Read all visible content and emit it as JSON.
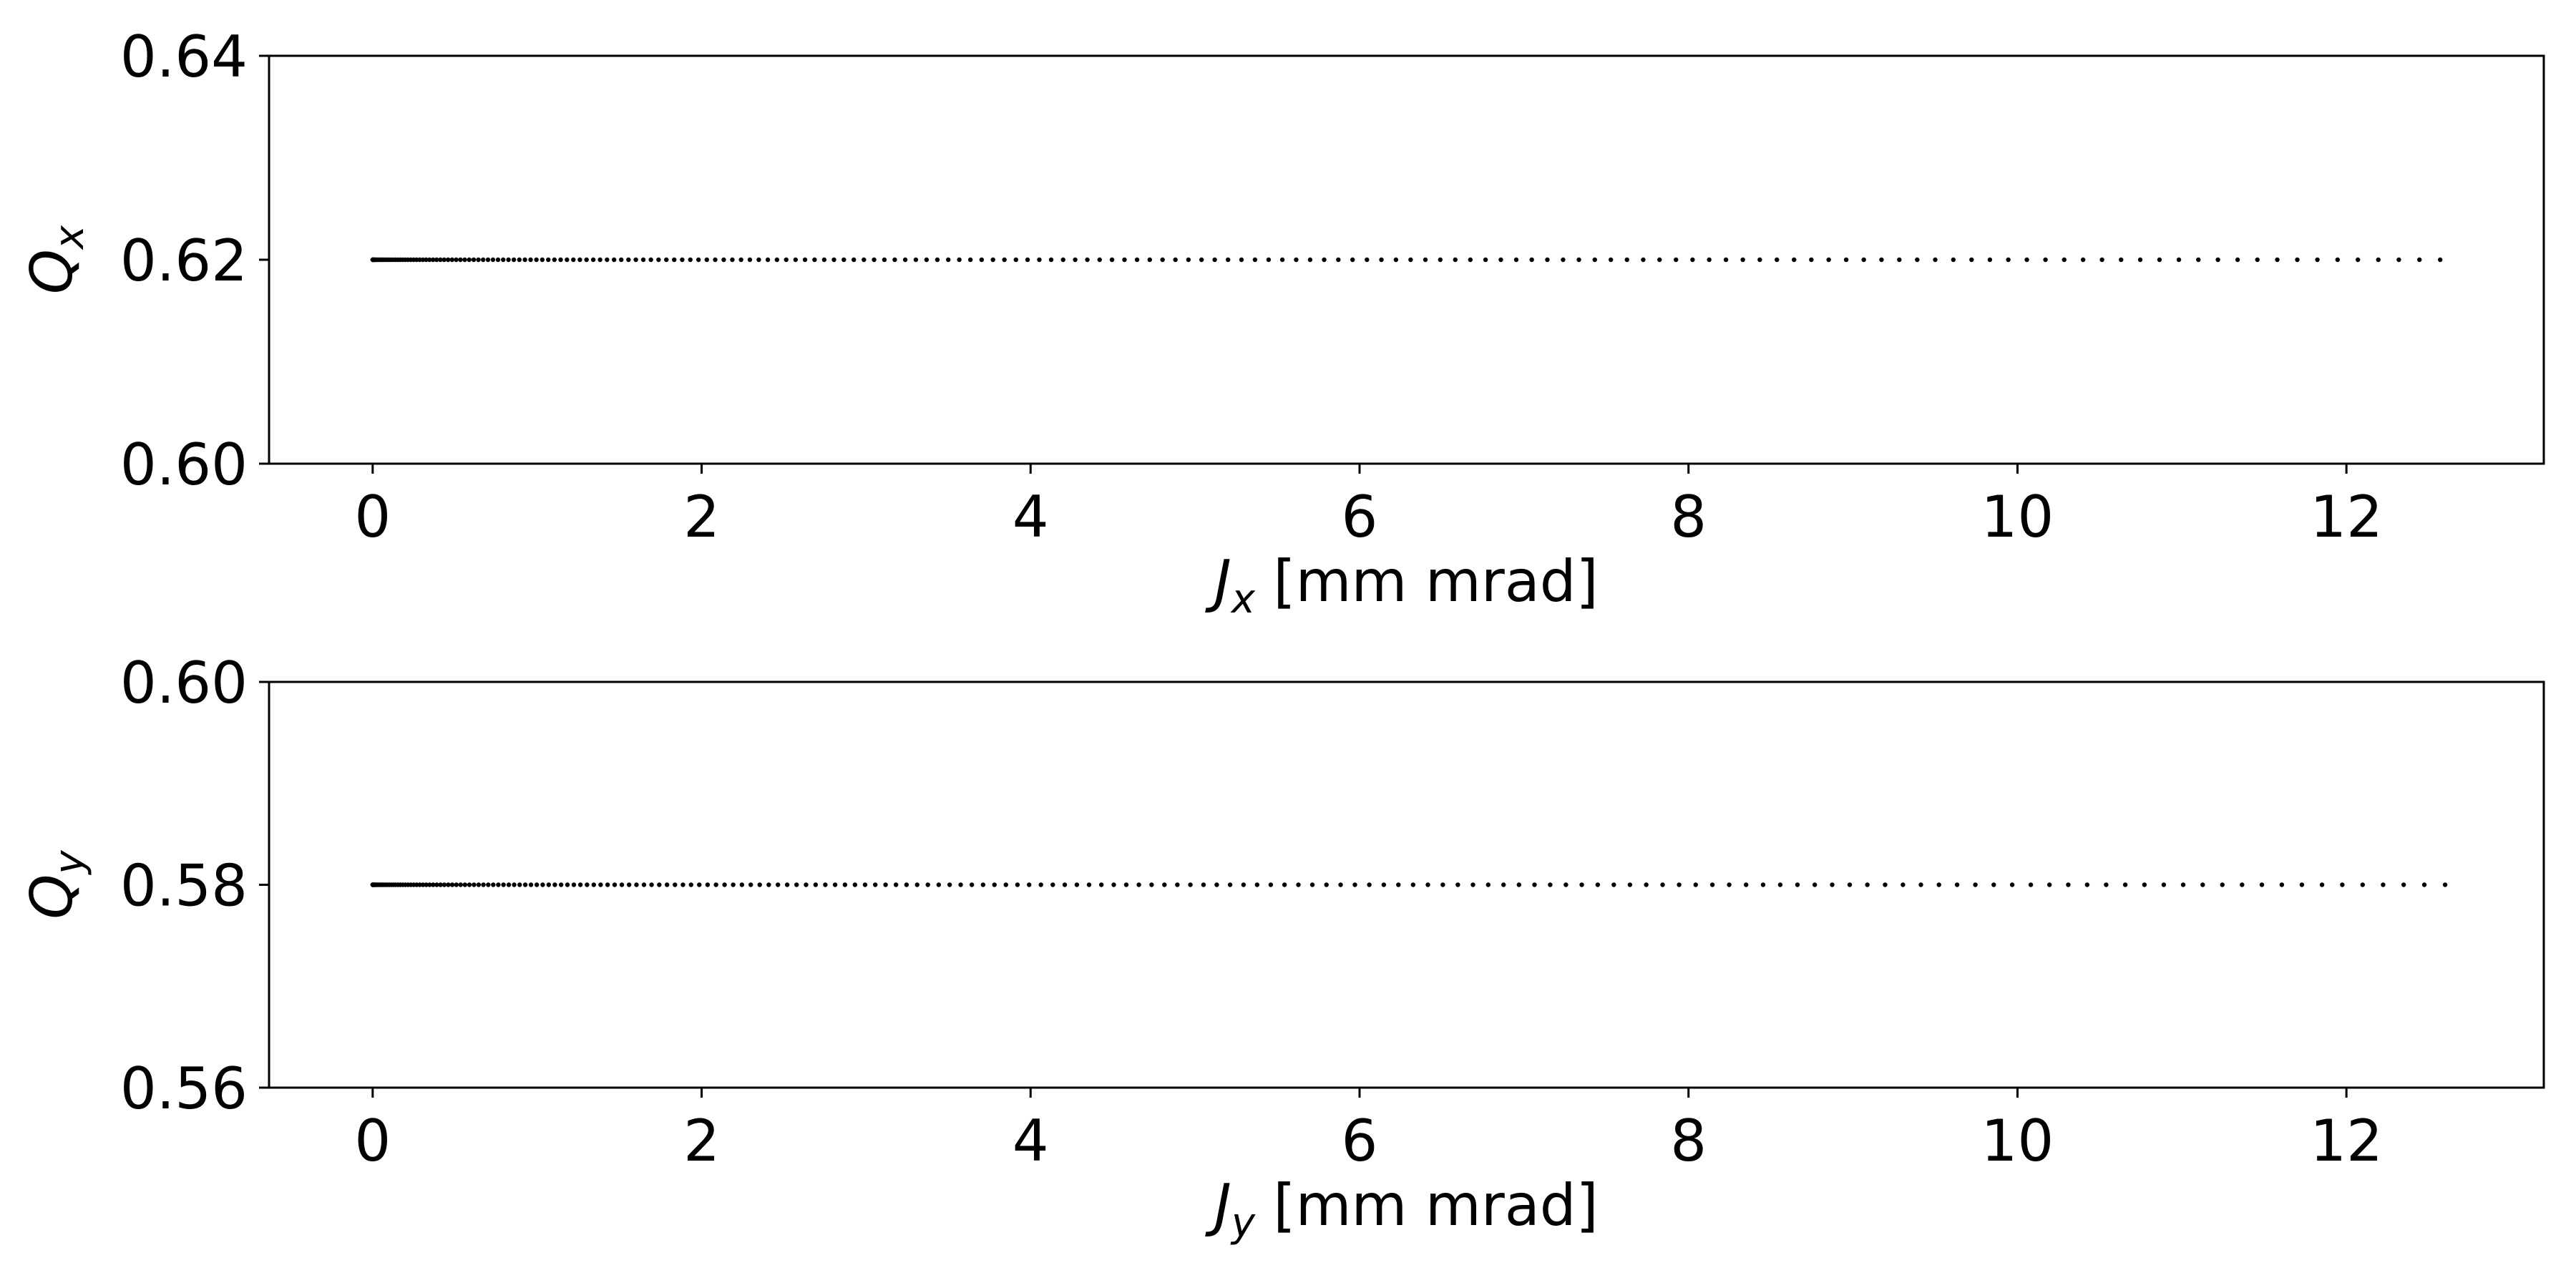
{
  "chart_data": [
    {
      "type": "scatter",
      "xlabel": {
        "symbol": "J",
        "subscript": "x",
        "unit": " [mm mrad]"
      },
      "ylabel": {
        "symbol": "Q",
        "subscript": "x"
      },
      "xlim": [
        -0.63,
        13.2
      ],
      "ylim": [
        0.6,
        0.64
      ],
      "xticks": [
        "0",
        "2",
        "4",
        "6",
        "8",
        "10",
        "12"
      ],
      "xtick_values": [
        0,
        2,
        4,
        6,
        8,
        10,
        12
      ],
      "yticks": [
        "0.60",
        "0.62",
        "0.64"
      ],
      "ytick_values": [
        0.6,
        0.62,
        0.64
      ],
      "grid": false,
      "series": [
        {
          "marker_color": "#000000",
          "x_range": [
            0,
            12.57
          ],
          "x_distribution": "quadratic",
          "n_points": 200,
          "y_constant": 0.62
        }
      ]
    },
    {
      "type": "scatter",
      "xlabel": {
        "symbol": "J",
        "subscript": "y",
        "unit": " [mm mrad]"
      },
      "ylabel": {
        "symbol": "Q",
        "subscript": "y"
      },
      "xlim": [
        -0.63,
        13.2
      ],
      "ylim": [
        0.56,
        0.6
      ],
      "xticks": [
        "0",
        "2",
        "4",
        "6",
        "8",
        "10",
        "12"
      ],
      "xtick_values": [
        0,
        2,
        4,
        6,
        8,
        10,
        12
      ],
      "yticks": [
        "0.56",
        "0.58",
        "0.60"
      ],
      "ytick_values": [
        0.56,
        0.58,
        0.6
      ],
      "grid": false,
      "series": [
        {
          "marker_color": "#000000",
          "x_range": [
            0,
            12.6
          ],
          "x_distribution": "quadratic",
          "n_points": 200,
          "y_constant": 0.58
        }
      ]
    }
  ]
}
